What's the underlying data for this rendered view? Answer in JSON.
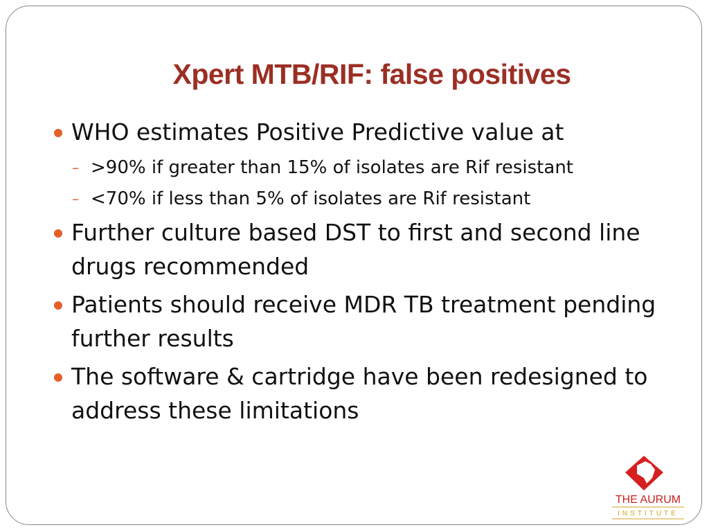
{
  "slide": {
    "title": "Xpert MTB/RIF: false positives",
    "bullets": [
      {
        "text": "WHO estimates Positive Predictive value at",
        "sub": [
          ">90% if greater than 15% of isolates are Rif resistant",
          "<70% if less than 5% of isolates are Rif resistant"
        ]
      },
      {
        "text": "Further culture based DST to first and second line drugs recommended"
      },
      {
        "text": "Patients should receive MDR TB treatment pending further results"
      },
      {
        "text": "The software & cartridge have been redesigned to address these limitations"
      }
    ],
    "logo": {
      "line1": "THE AURUM",
      "line2": "INSTITUTE"
    }
  }
}
